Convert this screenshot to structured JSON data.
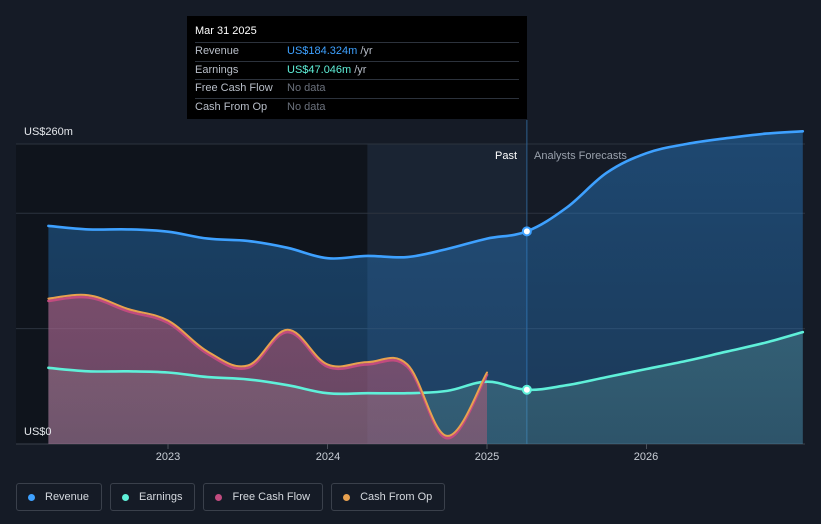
{
  "tooltip": {
    "date": "Mar 31 2025",
    "rows": [
      {
        "label": "Revenue",
        "value": "US$184.324m",
        "unit": "/yr",
        "color": "#3ea1ff"
      },
      {
        "label": "Earnings",
        "value": "US$47.046m",
        "unit": "/yr",
        "color": "#5ff0d9"
      },
      {
        "label": "Free Cash Flow",
        "value": "No data",
        "unit": "",
        "color": ""
      },
      {
        "label": "Cash From Op",
        "value": "No data",
        "unit": "",
        "color": ""
      }
    ]
  },
  "period_labels": {
    "past": "Past",
    "forecast": "Analysts Forecasts"
  },
  "chart_data": {
    "type": "area",
    "y_axis": {
      "min": 0,
      "max": 260,
      "top_label": "US$260m",
      "bottom_label": "US$0"
    },
    "x_ticks": [
      {
        "x": 2023.0,
        "label": "2023"
      },
      {
        "x": 2024.0,
        "label": "2024"
      },
      {
        "x": 2025.0,
        "label": "2025"
      },
      {
        "x": 2026.0,
        "label": "2026"
      }
    ],
    "highlight_range": [
      2024.25,
      2025.25
    ],
    "past_end": 2025.25,
    "series": [
      {
        "name": "Revenue",
        "color": "#3ea1ff",
        "points": [
          [
            2022.25,
            189
          ],
          [
            2022.5,
            186
          ],
          [
            2022.75,
            186
          ],
          [
            2023.0,
            184
          ],
          [
            2023.25,
            178
          ],
          [
            2023.5,
            176
          ],
          [
            2023.75,
            170
          ],
          [
            2024.0,
            161
          ],
          [
            2024.25,
            163
          ],
          [
            2024.5,
            162
          ],
          [
            2024.75,
            169
          ],
          [
            2025.0,
            178
          ],
          [
            2025.25,
            184.3
          ],
          [
            2025.5,
            205
          ],
          [
            2025.75,
            235
          ],
          [
            2026.0,
            252
          ],
          [
            2026.25,
            260
          ],
          [
            2026.5,
            265
          ],
          [
            2026.75,
            269
          ],
          [
            2026.98,
            271
          ]
        ]
      },
      {
        "name": "Earnings",
        "color": "#5ff0d9",
        "points": [
          [
            2022.25,
            66
          ],
          [
            2022.5,
            63
          ],
          [
            2022.75,
            63
          ],
          [
            2023.0,
            62
          ],
          [
            2023.25,
            58
          ],
          [
            2023.5,
            56
          ],
          [
            2023.75,
            51
          ],
          [
            2024.0,
            44
          ],
          [
            2024.25,
            44
          ],
          [
            2024.5,
            44
          ],
          [
            2024.75,
            46
          ],
          [
            2025.0,
            54
          ],
          [
            2025.25,
            47
          ],
          [
            2025.5,
            51
          ],
          [
            2025.75,
            58
          ],
          [
            2026.0,
            65
          ],
          [
            2026.25,
            72
          ],
          [
            2026.5,
            80
          ],
          [
            2026.75,
            88
          ],
          [
            2026.98,
            97
          ]
        ]
      },
      {
        "name": "Free Cash Flow",
        "color": "#c14b7f",
        "points": [
          [
            2022.25,
            124
          ],
          [
            2022.5,
            127
          ],
          [
            2022.75,
            115
          ],
          [
            2023.0,
            105
          ],
          [
            2023.25,
            78
          ],
          [
            2023.5,
            66
          ],
          [
            2023.75,
            97
          ],
          [
            2024.0,
            67
          ],
          [
            2024.25,
            69
          ],
          [
            2024.5,
            67
          ],
          [
            2024.75,
            5
          ],
          [
            2025.0,
            60
          ]
        ]
      },
      {
        "name": "Cash From Op",
        "color": "#e8a14f",
        "points": [
          [
            2022.25,
            126
          ],
          [
            2022.5,
            129
          ],
          [
            2022.75,
            117
          ],
          [
            2023.0,
            107
          ],
          [
            2023.25,
            80
          ],
          [
            2023.5,
            68
          ],
          [
            2023.75,
            99
          ],
          [
            2024.0,
            69
          ],
          [
            2024.25,
            71
          ],
          [
            2024.5,
            69
          ],
          [
            2024.75,
            7
          ],
          [
            2025.0,
            62
          ]
        ]
      }
    ],
    "legend_position": "bottom-left",
    "grid": true
  },
  "legend": [
    {
      "label": "Revenue",
      "color": "#3ea1ff"
    },
    {
      "label": "Earnings",
      "color": "#5ff0d9"
    },
    {
      "label": "Free Cash Flow",
      "color": "#c14b7f"
    },
    {
      "label": "Cash From Op",
      "color": "#e8a14f"
    }
  ]
}
